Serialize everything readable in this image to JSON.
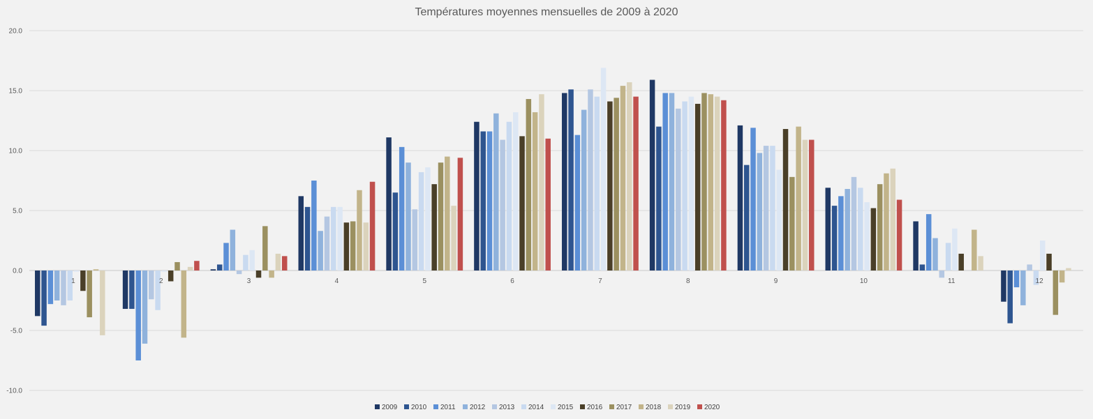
{
  "chart_data": {
    "type": "bar",
    "title": "Températures moyennes mensuelles de 2009 à 2020",
    "xlabel": "",
    "ylabel": "",
    "ylim": [
      -10,
      20
    ],
    "yticks": [
      "-10.0",
      "-5.0",
      "0.0",
      "5.0",
      "10.0",
      "15.0",
      "20.0"
    ],
    "grid": true,
    "legend_position": "bottom",
    "categories": [
      "1",
      "2",
      "3",
      "4",
      "5",
      "6",
      "7",
      "8",
      "9",
      "10",
      "11",
      "12"
    ],
    "series": [
      {
        "name": "2009",
        "color": "#1f3864",
        "values": [
          -3.8,
          -3.2,
          0.1,
          6.2,
          11.1,
          12.4,
          14.8,
          15.9,
          12.1,
          6.9,
          4.1,
          -2.6
        ]
      },
      {
        "name": "2010",
        "color": "#2e5590",
        "values": [
          -4.6,
          -3.2,
          0.5,
          5.3,
          6.5,
          11.6,
          15.1,
          12.0,
          8.8,
          5.4,
          0.5,
          -4.4
        ]
      },
      {
        "name": "2011",
        "color": "#5b8fd6",
        "values": [
          -2.8,
          -7.5,
          2.3,
          7.5,
          10.3,
          11.6,
          11.3,
          14.8,
          11.9,
          6.2,
          4.7,
          -1.4
        ]
      },
      {
        "name": "2012",
        "color": "#8fb2dc",
        "values": [
          -2.5,
          -6.1,
          3.4,
          3.3,
          9.0,
          13.1,
          13.4,
          14.8,
          9.8,
          6.8,
          2.7,
          -2.9
        ]
      },
      {
        "name": "2013",
        "color": "#b4c7e2",
        "values": [
          -2.9,
          -2.4,
          -0.3,
          4.5,
          5.1,
          10.9,
          15.1,
          13.5,
          10.4,
          7.8,
          -0.6,
          0.5
        ]
      },
      {
        "name": "2014",
        "color": "#c9daf0",
        "values": [
          -2.5,
          -3.3,
          1.3,
          5.3,
          8.2,
          12.4,
          14.5,
          14.1,
          10.4,
          6.9,
          2.3,
          -1.2
        ]
      },
      {
        "name": "2015",
        "color": "#dde7f4",
        "values": [
          -0.1,
          -0.1,
          1.7,
          5.3,
          8.6,
          13.2,
          16.9,
          14.5,
          8.4,
          5.7,
          3.5,
          2.5
        ]
      },
      {
        "name": "2016",
        "color": "#4a3f28",
        "values": [
          -1.7,
          -0.9,
          -0.6,
          4.0,
          7.2,
          11.2,
          14.1,
          13.9,
          11.8,
          5.2,
          1.4,
          1.4
        ]
      },
      {
        "name": "2017",
        "color": "#9b9060",
        "values": [
          -3.9,
          0.7,
          3.7,
          4.1,
          9.0,
          14.3,
          14.4,
          14.8,
          7.8,
          7.2,
          0.0,
          -3.7
        ]
      },
      {
        "name": "2018",
        "color": "#c2b48a",
        "values": [
          0.1,
          -5.6,
          -0.6,
          6.7,
          9.5,
          13.2,
          15.4,
          14.7,
          12.0,
          8.1,
          3.4,
          -1.0
        ]
      },
      {
        "name": "2019",
        "color": "#dbd3bc",
        "values": [
          -5.4,
          0.3,
          1.4,
          4.0,
          5.4,
          14.7,
          15.7,
          14.5,
          10.9,
          8.5,
          1.2,
          0.2
        ]
      },
      {
        "name": "2020",
        "color": "#c0504d",
        "values": [
          0.0,
          0.8,
          1.2,
          7.4,
          9.4,
          11.0,
          14.5,
          14.2,
          10.9,
          5.9,
          0.0,
          0.0
        ]
      }
    ]
  }
}
